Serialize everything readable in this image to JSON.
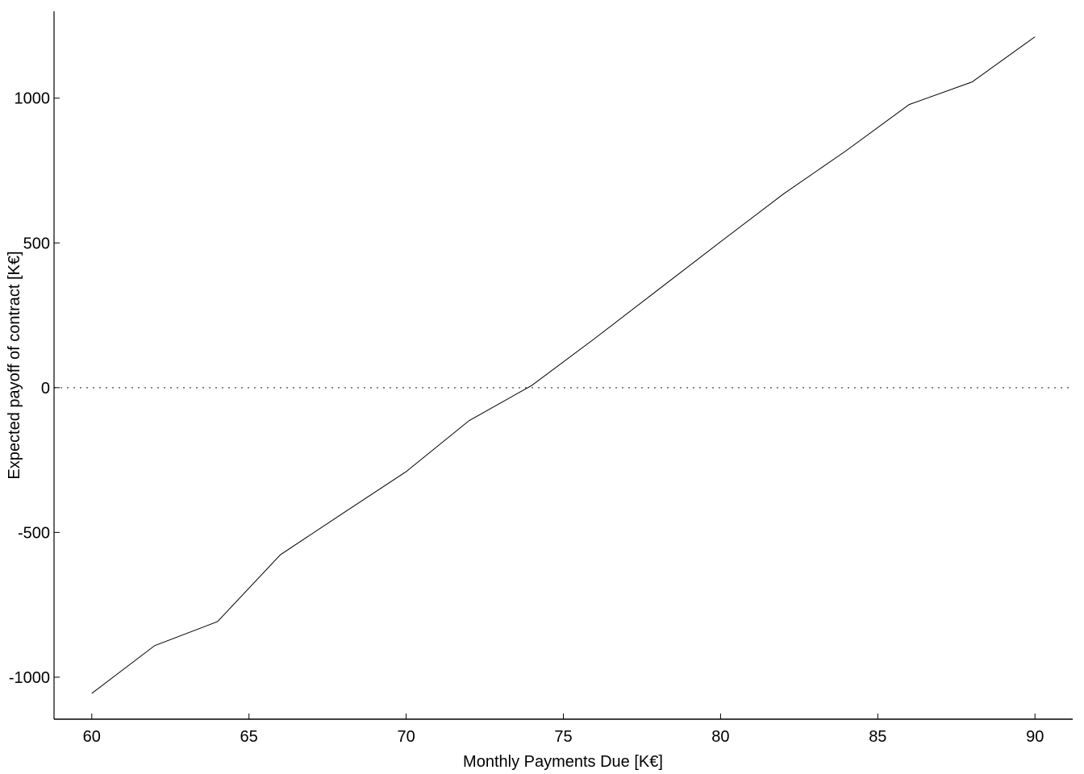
{
  "chart_data": {
    "type": "line",
    "x_label": "Monthly Payments Due [K€]",
    "y_label": "Expected payoff of contract [K€]",
    "x": [
      60,
      62,
      64,
      66,
      68,
      70,
      72,
      74,
      76,
      78,
      80,
      82,
      84,
      86,
      88,
      90
    ],
    "series": [
      {
        "color": "#000000",
        "values": [
          -1056,
          -891,
          -808,
          -577,
          -433,
          -290,
          -114,
          8,
          170,
          337,
          504,
          669,
          819,
          978,
          1056,
          1212
        ]
      }
    ],
    "xlim": [
      58.8,
      91.2
    ],
    "ylim": [
      -1145,
      1300
    ],
    "xticks": [
      60,
      65,
      70,
      75,
      80,
      85,
      90
    ],
    "yticks": [
      -1000,
      -500,
      0,
      500,
      1000
    ],
    "reference_line": 0
  }
}
